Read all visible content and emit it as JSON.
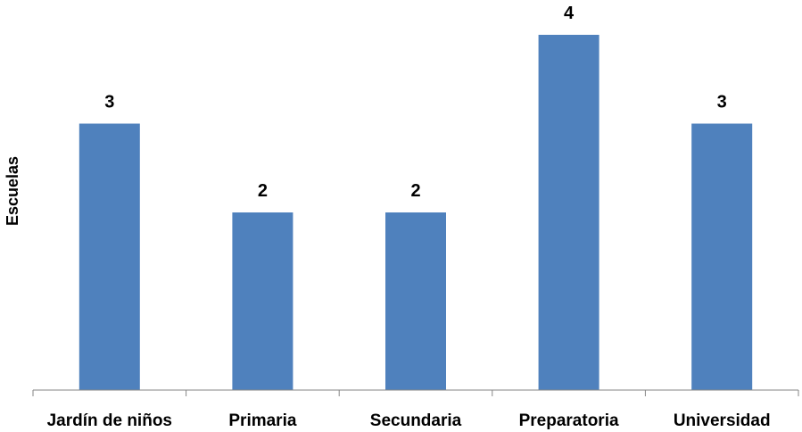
{
  "chart_data": {
    "type": "bar",
    "categories": [
      "Jardín de niños",
      "Primaria",
      "Secundaria",
      "Preparatoria",
      "Universidad"
    ],
    "values": [
      3,
      2,
      2,
      4,
      3
    ],
    "title": "",
    "xlabel": "",
    "ylabel": "Escuelas",
    "ylim": [
      0,
      4
    ],
    "grid": false,
    "legend": "none",
    "data_labels": true,
    "bar_color": "#4F81BD",
    "axis_color": "#868686"
  }
}
